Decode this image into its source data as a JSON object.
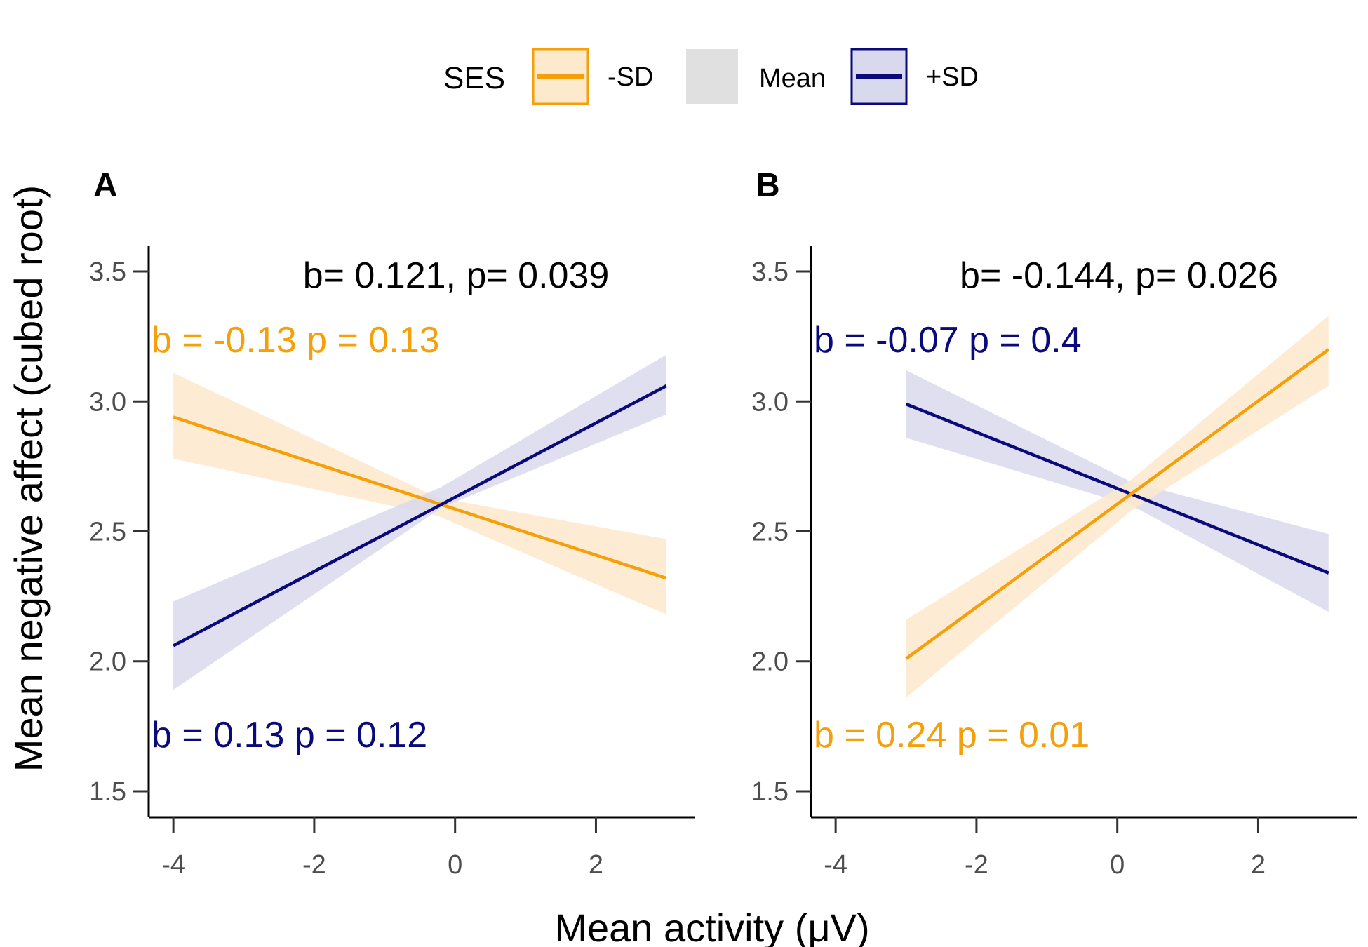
{
  "legend": {
    "title": "SES",
    "items": [
      {
        "label": "-SD",
        "color": "#F5A00A",
        "fill": "#FDE9CB"
      },
      {
        "label": "Mean",
        "color": null,
        "fill": "#E0E0E0"
      },
      {
        "label": "+SD",
        "color": "#0A0A7A",
        "fill": "#D9D9ED"
      }
    ]
  },
  "colors": {
    "low": "#F5A00A",
    "high": "#0A0A7A",
    "axis": "#000000",
    "tick_text": "#4d4d4d"
  },
  "axes": {
    "xlabel": "Mean activity (μV)",
    "ylabel": "Mean negative affect (cubed root)"
  },
  "chart_data": [
    {
      "type": "line",
      "panel": "A",
      "annotation": "b= 0.121, p= 0.039",
      "xlim": [
        -4.35,
        3.4
      ],
      "ylim": [
        1.4,
        3.6
      ],
      "x_ticks": [
        -4,
        -2,
        0,
        2
      ],
      "y_ticks": [
        1.5,
        2.0,
        2.5,
        3.0,
        3.5
      ],
      "x_tick_labels": [
        "-4",
        "-2",
        "0",
        "2"
      ],
      "y_tick_labels": [
        "1.5",
        "2.0",
        "2.5",
        "3.0",
        "3.5"
      ],
      "series": [
        {
          "key": "low",
          "x": [
            -4,
            3
          ],
          "y": [
            2.94,
            2.32
          ],
          "ci_lower": [
            2.78,
            2.18
          ],
          "ci_upper": [
            3.11,
            2.47
          ],
          "ci_mid_x": -0.25,
          "ci_mid": [
            2.56,
            2.63
          ],
          "stat_label": "b = -0.13 p = 0.13",
          "stat_pos": "upper-left"
        },
        {
          "key": "high",
          "x": [
            -4,
            3
          ],
          "y": [
            2.06,
            3.06
          ],
          "ci_lower": [
            1.89,
            2.95
          ],
          "ci_upper": [
            2.23,
            3.18
          ],
          "ci_mid_x": -0.2,
          "ci_mid": [
            2.59,
            2.67
          ],
          "stat_label": "b = 0.13 p = 0.12",
          "stat_pos": "lower-left"
        }
      ]
    },
    {
      "type": "line",
      "panel": "B",
      "annotation": "b= -0.144, p= 0.026",
      "xlim": [
        -4.35,
        3.4
      ],
      "ylim": [
        1.4,
        3.6
      ],
      "x_ticks": [
        -4,
        -2,
        0,
        2
      ],
      "y_ticks": [
        1.5,
        2.0,
        2.5,
        3.0,
        3.5
      ],
      "x_tick_labels": [
        "-4",
        "-2",
        "0",
        "2"
      ],
      "y_tick_labels": [
        "1.5",
        "2.0",
        "2.5",
        "3.0",
        "3.5"
      ],
      "series": [
        {
          "key": "high",
          "x": [
            -3,
            3
          ],
          "y": [
            2.99,
            2.34
          ],
          "ci_lower": [
            2.86,
            2.19
          ],
          "ci_upper": [
            3.12,
            2.49
          ],
          "ci_mid_x": 0.2,
          "ci_mid": [
            2.6,
            2.69
          ],
          "stat_label": "b = -0.07 p = 0.4",
          "stat_pos": "upper-left"
        },
        {
          "key": "low",
          "x": [
            -3,
            3
          ],
          "y": [
            2.01,
            3.2
          ],
          "ci_lower": [
            1.86,
            3.06
          ],
          "ci_upper": [
            2.16,
            3.33
          ],
          "ci_mid_x": 0.2,
          "ci_mid": [
            2.58,
            2.7
          ],
          "stat_label": "b = 0.24 p = 0.01",
          "stat_pos": "lower-left"
        }
      ]
    }
  ]
}
